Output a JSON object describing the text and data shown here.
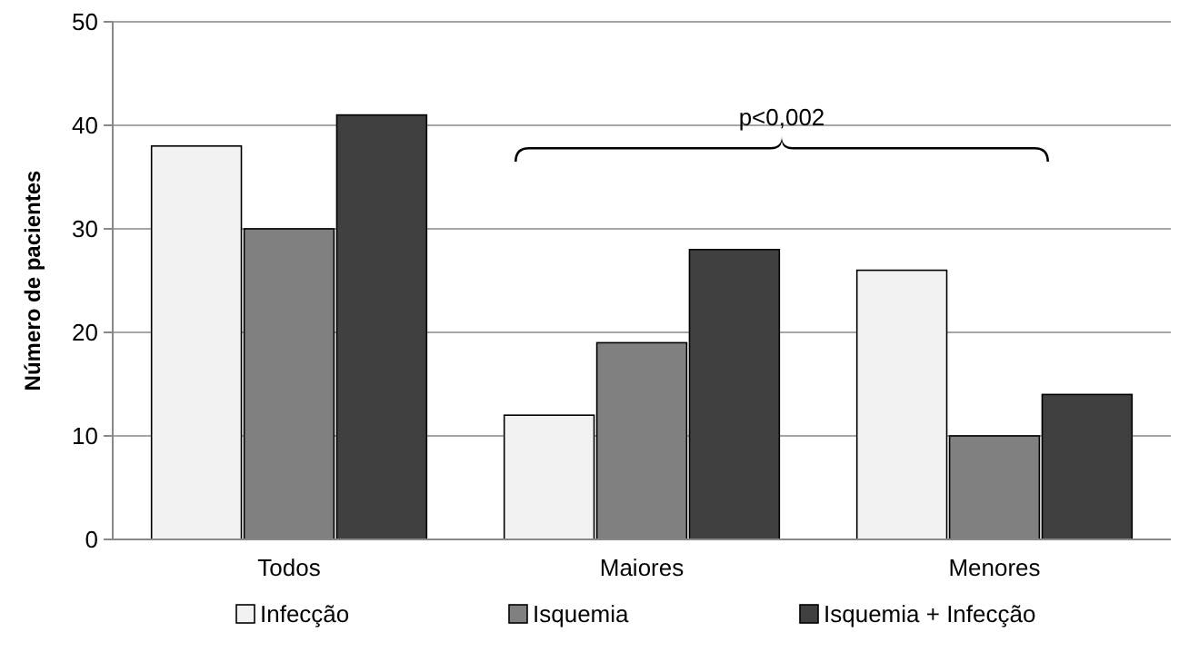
{
  "chart_data": {
    "type": "bar",
    "ylabel": "Número de pacientes",
    "categories": [
      "Todos",
      "Maiores",
      "Menores"
    ],
    "series": [
      {
        "name": "Infecção",
        "color": "#f2f2f2",
        "values": [
          38,
          12,
          26
        ]
      },
      {
        "name": "Isquemia",
        "color": "#808080",
        "values": [
          30,
          19,
          10
        ]
      },
      {
        "name": "Isquemia + Infecção",
        "color": "#404040",
        "values": [
          41,
          28,
          14
        ]
      }
    ],
    "ylim": [
      0,
      50
    ],
    "yticks": [
      0,
      10,
      20,
      30,
      40,
      50
    ],
    "grid": "y",
    "legend": "bottom",
    "annotations": [
      "p<0,002"
    ]
  }
}
